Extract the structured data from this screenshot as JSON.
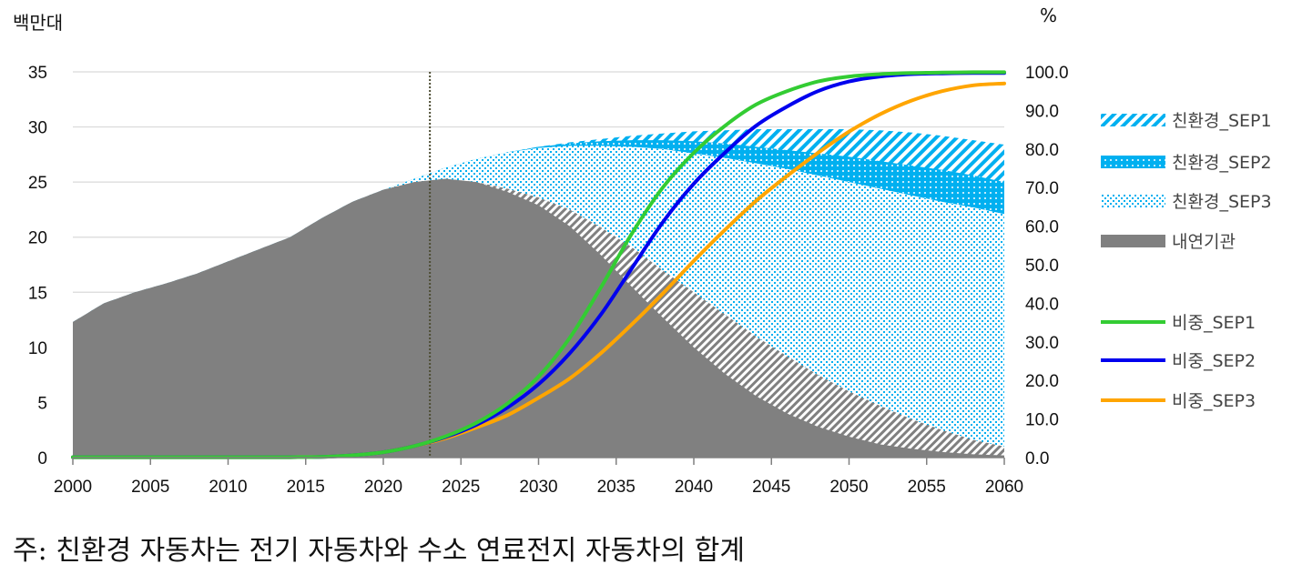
{
  "note": "주: 친환경 자동차는 전기 자동차와 수소 연료전지 자동차의 합계",
  "chart_data": {
    "type": "area",
    "y_unit_left": "백만대",
    "y_unit_right": "%",
    "x_ticks": [
      "2000",
      "2005",
      "2010",
      "2015",
      "2020",
      "2025",
      "2030",
      "2035",
      "2040",
      "2045",
      "2050",
      "2055",
      "2060"
    ],
    "y_left_ticks": [
      "0",
      "5",
      "10",
      "15",
      "20",
      "25",
      "30",
      "35"
    ],
    "y_right_ticks": [
      "0.0",
      "10.0",
      "20.0",
      "30.0",
      "40.0",
      "50.0",
      "60.0",
      "70.0",
      "80.0",
      "90.0",
      "100.0"
    ],
    "xlim": [
      2000,
      2060
    ],
    "ylim_left": [
      0,
      35
    ],
    "ylim_right": [
      0,
      100
    ],
    "vertical_marker_year": 2023,
    "legend_position": "right",
    "colors": {
      "ice": "#808080",
      "eco": "#00b0f0",
      "share_sep1": "#33cc33",
      "share_sep2": "#0000ee",
      "share_sep3": "#ffa500",
      "grid": "#d9d9d9",
      "marker": "#4d4d33"
    },
    "x": [
      2000,
      2002,
      2004,
      2006,
      2008,
      2010,
      2012,
      2014,
      2016,
      2018,
      2020,
      2022,
      2024,
      2026,
      2028,
      2030,
      2032,
      2034,
      2036,
      2038,
      2040,
      2042,
      2044,
      2046,
      2048,
      2050,
      2052,
      2054,
      2056,
      2058,
      2060
    ],
    "total_series": [
      {
        "name": "친환경_SEP1",
        "values": [
          12.3,
          14.0,
          15.0,
          15.8,
          16.7,
          17.8,
          18.9,
          20.0,
          21.7,
          23.2,
          24.3,
          25.3,
          26.3,
          27.1,
          27.7,
          28.2,
          28.6,
          28.9,
          29.2,
          29.4,
          29.6,
          29.7,
          29.8,
          29.8,
          29.8,
          29.8,
          29.7,
          29.5,
          29.2,
          28.8,
          28.4
        ]
      },
      {
        "name": "친환경_SEP2",
        "values": [
          12.3,
          14.0,
          15.0,
          15.8,
          16.7,
          17.8,
          18.9,
          20.0,
          21.7,
          23.2,
          24.3,
          25.3,
          26.3,
          27.1,
          27.7,
          28.2,
          28.5,
          28.7,
          28.8,
          28.8,
          28.7,
          28.5,
          28.2,
          27.9,
          27.6,
          27.3,
          26.9,
          26.5,
          26.1,
          25.6,
          25.0
        ]
      },
      {
        "name": "친환경_SEP3",
        "values": [
          12.3,
          14.0,
          15.0,
          15.8,
          16.7,
          17.8,
          18.9,
          20.0,
          21.7,
          23.2,
          24.3,
          25.3,
          26.3,
          27.1,
          27.7,
          28.1,
          28.3,
          28.3,
          28.2,
          28.0,
          27.6,
          27.2,
          26.7,
          26.2,
          25.6,
          25.0,
          24.4,
          23.8,
          23.2,
          22.7,
          22.1
        ]
      }
    ],
    "ice_series": [
      {
        "name": "내연기관_SEP1",
        "values": [
          12.3,
          14.0,
          15.0,
          15.8,
          16.7,
          17.8,
          18.9,
          20.0,
          21.7,
          23.2,
          24.3,
          25.0,
          25.3,
          25.0,
          24.1,
          22.9,
          21.0,
          18.4,
          15.5,
          12.7,
          10.0,
          7.6,
          5.6,
          4.0,
          2.8,
          1.9,
          1.2,
          0.8,
          0.5,
          0.3,
          0.2
        ]
      },
      {
        "name": "내연기관_SEP3",
        "values": [
          12.3,
          14.0,
          15.0,
          15.8,
          16.7,
          17.8,
          18.9,
          20.0,
          21.7,
          23.2,
          24.3,
          25.0,
          25.3,
          25.0,
          24.4,
          23.6,
          22.5,
          20.9,
          19.1,
          17.0,
          15.0,
          13.0,
          11.0,
          9.2,
          7.5,
          6.0,
          4.7,
          3.5,
          2.5,
          1.6,
          1.0
        ]
      }
    ],
    "share_series": [
      {
        "name": "비중_SEP1",
        "values": [
          0.1,
          0.1,
          0.1,
          0.1,
          0.1,
          0.1,
          0.1,
          0.1,
          0.2,
          0.6,
          1.4,
          3.0,
          5.5,
          9.0,
          14.0,
          21.0,
          31.0,
          44.0,
          58.0,
          70.0,
          79.0,
          86.0,
          91.5,
          95.0,
          97.5,
          98.8,
          99.4,
          99.7,
          99.8,
          99.9,
          99.9
        ]
      },
      {
        "name": "비중_SEP2",
        "values": [
          0.1,
          0.1,
          0.1,
          0.1,
          0.1,
          0.1,
          0.1,
          0.1,
          0.2,
          0.6,
          1.4,
          3.0,
          5.3,
          8.5,
          13.0,
          19.0,
          27.0,
          37.0,
          49.0,
          61.0,
          71.0,
          79.0,
          86.0,
          91.0,
          95.0,
          97.5,
          98.8,
          99.4,
          99.6,
          99.7,
          99.7
        ]
      },
      {
        "name": "비중_SEP3",
        "values": [
          0.1,
          0.1,
          0.1,
          0.1,
          0.1,
          0.1,
          0.1,
          0.1,
          0.2,
          0.6,
          1.4,
          3.0,
          5.0,
          7.8,
          11.0,
          15.5,
          20.5,
          27.0,
          34.5,
          42.5,
          51.0,
          59.0,
          66.5,
          73.0,
          79.0,
          84.5,
          89.0,
          92.5,
          95.0,
          96.5,
          97.0
        ]
      }
    ],
    "legend": [
      {
        "label": "친환경_SEP1",
        "kind": "hatch-diag"
      },
      {
        "label": "친환경_SEP2",
        "kind": "hatch-grid"
      },
      {
        "label": "친환경_SEP3",
        "kind": "hatch-dots"
      },
      {
        "label": "내연기관",
        "kind": "solid-gray"
      },
      {
        "label": "비중_SEP1",
        "kind": "line-green"
      },
      {
        "label": "비중_SEP2",
        "kind": "line-blue"
      },
      {
        "label": "비중_SEP3",
        "kind": "line-orange"
      }
    ]
  }
}
